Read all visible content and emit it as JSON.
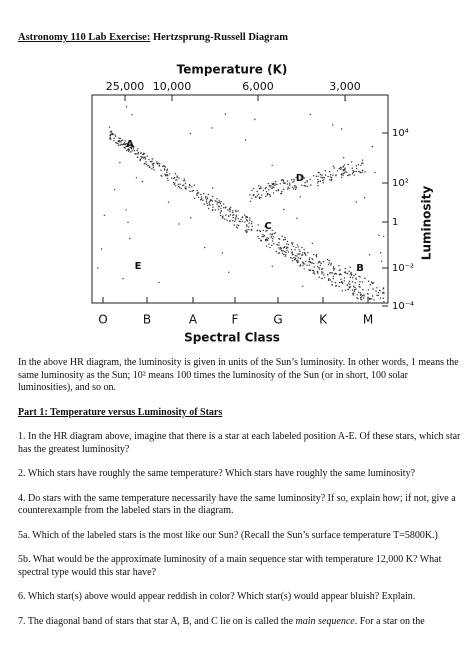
{
  "header": {
    "title_underlined": "Astronomy 110 Lab Exercise:",
    "title_rest": "Hertzsprung-Russell Diagram"
  },
  "figure": {
    "title": "Temperature (K)",
    "temperature_labels": [
      "25,000",
      "10,000",
      "6,000",
      "3,000"
    ],
    "luminosity_labels": [
      "10⁴",
      "10²",
      "1",
      "10⁻²",
      "10⁻⁴"
    ],
    "spectral_classes": [
      "O",
      "B",
      "A",
      "F",
      "G",
      "K",
      "M"
    ],
    "x_label": "Spectral Class",
    "y_label": "Luminosity",
    "star_labels": [
      "A",
      "B",
      "C",
      "D",
      "E"
    ]
  },
  "intro": "In the above HR diagram, the luminosity is given in units of the Sun’s luminosity. In other words, 1 means the same luminosity as the Sun; 10² means 100 times the luminosity of the Sun (or in short, 100 solar luminosities), and so on.",
  "section_heading": "Part 1: Temperature versus Luminosity of Stars",
  "questions": [
    "1. In the HR diagram above, imagine that there is a star at each labeled position A-E. Of these stars, which star has the greatest luminosity?",
    "2. Which stars have roughly the same temperature? Which stars have roughly the same luminosity?",
    "4. Do stars with the same temperature necessarily have the same luminosity? If so, explain how; if not, give a counterexample from the labeled stars in the diagram.",
    "5a. Which of the labeled stars is the most like our Sun? (Recall the Sun’s surface temperature T=5800K.)",
    "5b. What would be the approximate luminosity of a main sequence star with temperature 12,000 K? What spectral type would this star have?",
    "6. Which star(s) above would appear reddish in color? Which star(s) would appear bluish? Explain."
  ],
  "question_7": {
    "before": "7. The diagonal band of stars that star A, B, and C lie on is called the ",
    "emphasis": "main sequence",
    "after": ". For a star on the"
  }
}
